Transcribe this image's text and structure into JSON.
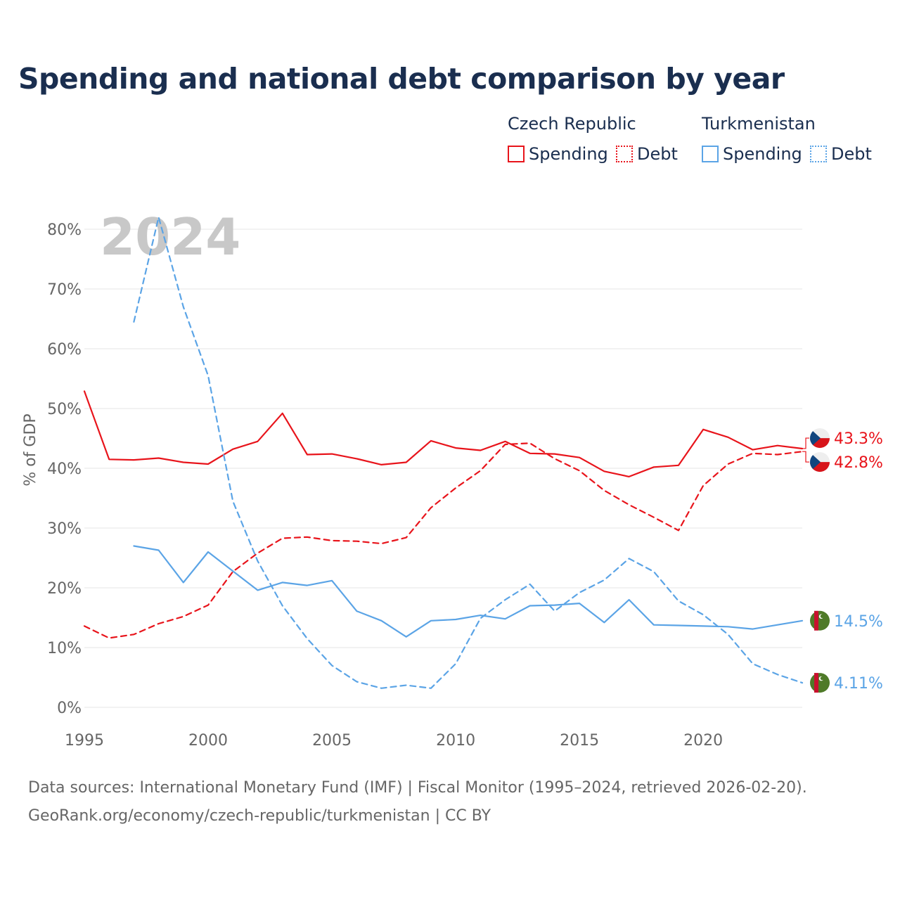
{
  "title": "Spending and national debt comparison by year",
  "legend": {
    "groups": [
      {
        "country": "Czech Republic",
        "items": [
          {
            "label": "Spending",
            "style": "solid",
            "color": "#e8141b"
          },
          {
            "label": "Debt",
            "style": "dotted",
            "color": "#e8141b"
          }
        ]
      },
      {
        "country": "Turkmenistan",
        "items": [
          {
            "label": "Spending",
            "style": "solid",
            "color": "#5ba4e6"
          },
          {
            "label": "Debt",
            "style": "dotted",
            "color": "#5ba4e6"
          }
        ]
      }
    ]
  },
  "colors": {
    "czech": "#e8141b",
    "turkmenistan": "#5ba4e6",
    "title": "#1a2e4f",
    "grid": "#e6e6e6",
    "axis_text": "#666666",
    "year_watermark": "#c8c8c8"
  },
  "source": {
    "line1": "Data sources: International Monetary Fund (IMF) | Fiscal Monitor (1995–2024, retrieved 2026-02-20).",
    "line2": "GeoRank.org/economy/czech-republic/turkmenistan | CC BY"
  },
  "chart_data": {
    "type": "line",
    "year_label": "2024",
    "ylabel": "% of GDP",
    "xlim": [
      1995,
      2024
    ],
    "ylim": [
      0,
      80
    ],
    "xticks": [
      {
        "value": 1995,
        "label": "1995"
      },
      {
        "value": 2000,
        "label": "2000"
      },
      {
        "value": 2005,
        "label": "2005"
      },
      {
        "value": 2010,
        "label": "2010"
      },
      {
        "value": 2015,
        "label": "2015"
      },
      {
        "value": 2020,
        "label": "2020"
      }
    ],
    "yticks": [
      {
        "value": 0,
        "label": "0%"
      },
      {
        "value": 10,
        "label": "10%"
      },
      {
        "value": 20,
        "label": "20%"
      },
      {
        "value": 30,
        "label": "30%"
      },
      {
        "value": 40,
        "label": "40%"
      },
      {
        "value": 50,
        "label": "50%"
      },
      {
        "value": 60,
        "label": "60%"
      },
      {
        "value": 70,
        "label": "70%"
      },
      {
        "value": 80,
        "label": "80%"
      }
    ],
    "series": [
      {
        "name": "Czech Republic Spending",
        "country": "cz",
        "style": "solid",
        "color": "#e8141b",
        "x": [
          1995,
          1996,
          1997,
          1998,
          1999,
          2000,
          2001,
          2002,
          2003,
          2004,
          2005,
          2006,
          2007,
          2008,
          2009,
          2010,
          2011,
          2012,
          2013,
          2014,
          2015,
          2016,
          2017,
          2018,
          2019,
          2020,
          2021,
          2022,
          2023,
          2024
        ],
        "values": [
          52.9,
          41.5,
          41.4,
          41.7,
          41.0,
          40.7,
          43.2,
          44.5,
          49.2,
          42.3,
          42.4,
          41.6,
          40.6,
          41.0,
          44.6,
          43.4,
          43.0,
          44.5,
          42.5,
          42.4,
          41.8,
          39.5,
          38.6,
          40.2,
          40.5,
          46.5,
          45.2,
          43.1,
          43.8,
          43.3
        ],
        "end_label": "43.3%"
      },
      {
        "name": "Czech Republic Debt",
        "country": "cz",
        "style": "dashed",
        "color": "#e8141b",
        "x": [
          1995,
          1996,
          1997,
          1998,
          1999,
          2000,
          2001,
          2002,
          2003,
          2004,
          2005,
          2006,
          2007,
          2008,
          2009,
          2010,
          2011,
          2012,
          2013,
          2014,
          2015,
          2016,
          2017,
          2018,
          2019,
          2020,
          2021,
          2022,
          2023,
          2024
        ],
        "values": [
          13.6,
          11.6,
          12.2,
          14.0,
          15.2,
          17.1,
          22.7,
          25.8,
          28.3,
          28.5,
          27.9,
          27.8,
          27.4,
          28.4,
          33.4,
          36.7,
          39.6,
          44.0,
          44.2,
          41.6,
          39.6,
          36.3,
          33.9,
          31.8,
          29.6,
          37.1,
          40.7,
          42.5,
          42.3,
          42.8
        ],
        "end_label": "42.8%"
      },
      {
        "name": "Turkmenistan Spending",
        "country": "tm",
        "style": "solid",
        "color": "#5ba4e6",
        "x": [
          1997,
          1998,
          1999,
          2000,
          2001,
          2002,
          2003,
          2004,
          2005,
          2006,
          2007,
          2008,
          2009,
          2010,
          2011,
          2012,
          2013,
          2014,
          2015,
          2016,
          2017,
          2018,
          2019,
          2020,
          2021,
          2022,
          2023,
          2024
        ],
        "values": [
          27.0,
          26.3,
          20.9,
          26.0,
          22.8,
          19.6,
          20.9,
          20.4,
          21.2,
          16.1,
          14.5,
          11.8,
          14.5,
          14.7,
          15.4,
          14.8,
          17.0,
          17.1,
          17.4,
          14.2,
          18.0,
          13.8,
          13.7,
          13.6,
          13.5,
          13.1,
          13.8,
          14.5
        ],
        "end_label": "14.5%"
      },
      {
        "name": "Turkmenistan Debt",
        "country": "tm",
        "style": "dashed",
        "color": "#5ba4e6",
        "x": [
          1997,
          1998,
          1999,
          2000,
          2001,
          2002,
          2003,
          2004,
          2005,
          2006,
          2007,
          2008,
          2009,
          2010,
          2011,
          2012,
          2013,
          2014,
          2015,
          2016,
          2017,
          2018,
          2019,
          2020,
          2021,
          2022,
          2023,
          2024
        ],
        "values": [
          64.5,
          82.0,
          67.0,
          55.5,
          34.5,
          24.5,
          17.0,
          11.5,
          7.0,
          4.3,
          3.2,
          3.7,
          3.2,
          7.3,
          14.9,
          18.0,
          20.6,
          16.1,
          19.2,
          21.3,
          24.9,
          22.7,
          17.8,
          15.5,
          12.2,
          7.3,
          5.5,
          4.11
        ],
        "end_label": "4.11%"
      }
    ]
  }
}
